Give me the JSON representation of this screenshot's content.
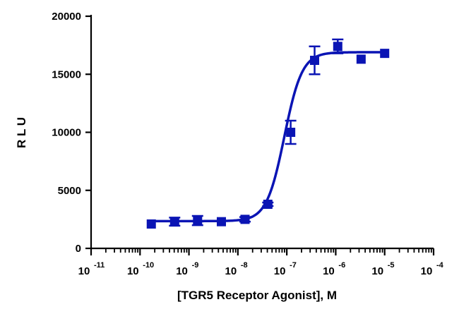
{
  "chart_data": {
    "type": "scatter",
    "title": "",
    "xlabel": "[TGR5 Receptor Agonist], M",
    "ylabel": "R L U",
    "x_scale": "log",
    "xlim": [
      1e-11,
      0.0001
    ],
    "ylim": [
      0,
      20000
    ],
    "grid": false,
    "legend": "none",
    "x_ticks": [
      {
        "base": "10",
        "exp": "-11"
      },
      {
        "base": "10",
        "exp": "-10"
      },
      {
        "base": "10",
        "exp": "-9"
      },
      {
        "base": "10",
        "exp": "-8"
      },
      {
        "base": "10",
        "exp": "-7"
      },
      {
        "base": "10",
        "exp": "-6"
      },
      {
        "base": "10",
        "exp": "-5"
      },
      {
        "base": "10",
        "exp": "-4"
      }
    ],
    "y_ticks": [
      "0",
      "5000",
      "10000",
      "15000",
      "20000"
    ],
    "color": "#0a14b4",
    "series": [
      {
        "x": [
          1.7e-10,
          5.1e-10,
          1.5e-09,
          4.6e-09,
          1.4e-08,
          4.1e-08,
          1.2e-07,
          3.7e-07,
          1.1e-06,
          3.3e-06,
          1e-05
        ],
        "y": [
          2100,
          2300,
          2400,
          2300,
          2500,
          3800,
          10000,
          16200,
          17400,
          16300,
          16800
        ],
        "error": [
          0,
          350,
          400,
          0,
          200,
          150,
          1000,
          1200,
          600,
          0,
          0
        ]
      }
    ],
    "fit": {
      "bottom": 2350,
      "top": 16900,
      "logEC50": -7.05,
      "hill": 2.4
    }
  }
}
